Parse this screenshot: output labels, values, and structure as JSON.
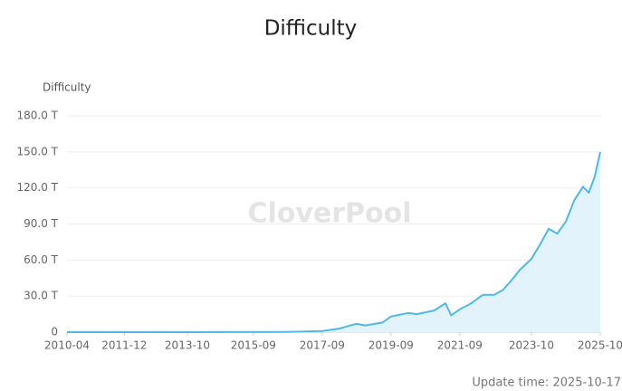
{
  "chart_data": {
    "type": "area",
    "title": "Difficulty",
    "y_axis_label": "Difficulty",
    "watermark": "CloverPool",
    "footer": "Update time: 2025-10-17",
    "x": [
      "2010-04",
      "2011-12",
      "2013-10",
      "2015-09",
      "2016-09",
      "2017-09",
      "2018-03",
      "2018-09",
      "2018-12",
      "2019-06",
      "2019-09",
      "2020-03",
      "2020-06",
      "2020-12",
      "2021-04",
      "2021-06",
      "2021-09",
      "2022-01",
      "2022-05",
      "2022-09",
      "2022-12",
      "2023-03",
      "2023-06",
      "2023-10",
      "2024-01",
      "2024-04",
      "2024-07",
      "2024-10",
      "2025-01",
      "2025-04",
      "2025-06",
      "2025-08",
      "2025-10"
    ],
    "series": [
      {
        "name": "Difficulty",
        "color": "#4db8ec",
        "fill": "#e3f3fb",
        "values": [
          0,
          0,
          0,
          0.06,
          0.2,
          1,
          3,
          7,
          5.6,
          8,
          13,
          16,
          15,
          18,
          24,
          14,
          19,
          24,
          31,
          31,
          35,
          43,
          52,
          61,
          73,
          86,
          82,
          92,
          110,
          121,
          116,
          129,
          150
        ]
      }
    ],
    "xticks": [
      "2010-04",
      "2011-12",
      "2013-10",
      "2015-09",
      "2017-09",
      "2019-09",
      "2021-09",
      "2023-10",
      "2025-10"
    ],
    "ylim": [
      0,
      180
    ],
    "yticks": [
      0,
      {
        "value": 30,
        "label": "30.0 T"
      },
      {
        "value": 60,
        "label": "60.0 T"
      },
      {
        "value": 90,
        "label": "90.0 T"
      },
      {
        "value": 120,
        "label": "120.0 T"
      },
      {
        "value": 150,
        "label": "150.0 T"
      },
      {
        "value": 180,
        "label": "180.0 T"
      }
    ],
    "grid": true
  }
}
